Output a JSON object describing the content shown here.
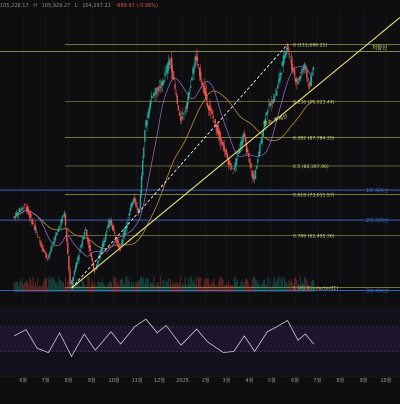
{
  "header": {
    "ohlc_prefix": "O",
    "open": "105,226.17",
    "high_prefix": "H",
    "high": "105,929.27",
    "low_prefix": "L",
    "low": "104,297.21",
    "change": "-989.97 (-0.98%)"
  },
  "colors": {
    "up": "#26a69a",
    "down": "#ef5350",
    "fib": "#c8d86a",
    "trend": "#e8e07a",
    "support": "#3f6fd6",
    "ma_long": "#b88a3a",
    "ma_short": "#9b6bd8",
    "rsi": "#c9c9c9"
  },
  "chart_data": {
    "type": "candlestick",
    "title": "",
    "x_ticks": [
      "6월",
      "7월",
      "8월",
      "9월",
      "10월",
      "11월",
      "12월",
      "2025",
      "2월",
      "3월",
      "4월",
      "5월",
      "6월",
      "7월",
      "8월",
      "9월",
      "10월"
    ],
    "price_range": [
      48000,
      120000
    ],
    "price_points": [
      [
        "2024-05-20",
        67000
      ],
      [
        "2024-06-05",
        70500
      ],
      [
        "2024-06-25",
        61000
      ],
      [
        "2024-07-05",
        56500
      ],
      [
        "2024-07-28",
        68500
      ],
      [
        "2024-08-05",
        49000
      ],
      [
        "2024-08-25",
        64500
      ],
      [
        "2024-09-06",
        53000
      ],
      [
        "2024-09-27",
        66500
      ],
      [
        "2024-10-10",
        59000
      ],
      [
        "2024-10-29",
        72500
      ],
      [
        "2024-11-05",
        68000
      ],
      [
        "2024-11-13",
        90000
      ],
      [
        "2024-11-22",
        98500
      ],
      [
        "2024-12-05",
        101000
      ],
      [
        "2024-12-17",
        108000
      ],
      [
        "2024-12-30",
        92000
      ],
      [
        "2025-01-08",
        96000
      ],
      [
        "2025-01-20",
        108500
      ],
      [
        "2025-02-04",
        97000
      ],
      [
        "2025-02-25",
        86000
      ],
      [
        "2025-03-11",
        78500
      ],
      [
        "2025-03-25",
        88500
      ],
      [
        "2025-04-08",
        76500
      ],
      [
        "2025-04-25",
        94500
      ],
      [
        "2025-05-08",
        99000
      ],
      [
        "2025-05-22",
        111600
      ],
      [
        "2025-06-05",
        101500
      ],
      [
        "2025-06-15",
        106500
      ],
      [
        "2025-06-22",
        100500
      ],
      [
        "2025-06-26",
        105000
      ]
    ],
    "fib_levels": [
      {
        "ratio": "0",
        "price": 111696.21,
        "label": "0 (111,696.21)"
      },
      {
        "ratio": "0.236",
        "price": 96923.44,
        "label": "0.236 (96,923.44)"
      },
      {
        "ratio": "0.382",
        "price": 87784.35,
        "label": "0.382 (87,784.35)"
      },
      {
        "ratio": "0.5",
        "price": 80397.96,
        "label": "0.5 (80,397.96)"
      },
      {
        "ratio": "0.618",
        "price": 73011.57,
        "label": "0.618 (73,011.57)"
      },
      {
        "ratio": "0.786",
        "price": 62495.36,
        "label": "0.786 (62,495.36)"
      },
      {
        "ratio": "1",
        "price": 49099.71,
        "label": "1 (49,0[redacted]1)"
      }
    ],
    "resistance_label": "저항선",
    "support_lines": [
      {
        "label": "1차 지지선",
        "price": 74200
      },
      {
        "label": "2차 지지선",
        "price": 66500
      },
      {
        "label": "3차 지지선",
        "price": 48400
      }
    ],
    "trendline_label": "상승 추세선",
    "trendline_points": [
      [
        "2024-08-05",
        49000
      ],
      [
        "2024-10-10",
        60500
      ],
      [
        "2025-07-10",
        102500
      ]
    ],
    "diagonal_points": [
      [
        "2024-08-05",
        49000
      ],
      [
        "2025-05-22",
        111696
      ]
    ],
    "rsi": {
      "range": [
        0,
        100
      ],
      "levels": [
        70,
        30
      ],
      "points": [
        [
          "2024-05-20",
          55
        ],
        [
          "2024-06-05",
          65
        ],
        [
          "2024-06-20",
          35
        ],
        [
          "2024-07-05",
          28
        ],
        [
          "2024-07-20",
          60
        ],
        [
          "2024-08-05",
          22
        ],
        [
          "2024-08-22",
          58
        ],
        [
          "2024-09-06",
          32
        ],
        [
          "2024-09-27",
          62
        ],
        [
          "2024-10-10",
          42
        ],
        [
          "2024-10-29",
          70
        ],
        [
          "2024-11-13",
          82
        ],
        [
          "2024-11-28",
          60
        ],
        [
          "2024-12-10",
          72
        ],
        [
          "2024-12-30",
          40
        ],
        [
          "2025-01-20",
          66
        ],
        [
          "2025-02-04",
          45
        ],
        [
          "2025-02-25",
          28
        ],
        [
          "2025-03-11",
          30
        ],
        [
          "2025-03-25",
          55
        ],
        [
          "2025-04-08",
          30
        ],
        [
          "2025-04-25",
          62
        ],
        [
          "2025-05-08",
          70
        ],
        [
          "2025-05-22",
          80
        ],
        [
          "2025-06-05",
          48
        ],
        [
          "2025-06-15",
          58
        ],
        [
          "2025-06-26",
          42
        ]
      ]
    }
  }
}
